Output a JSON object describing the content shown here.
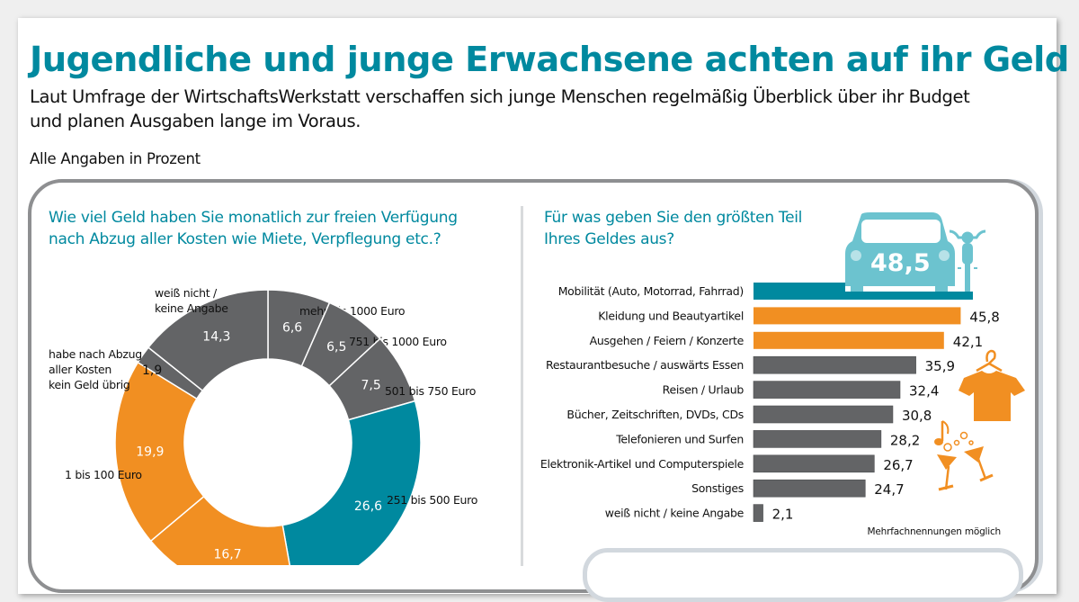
{
  "header": {
    "title": "Jugendliche und junge Erwachsene achten auf ihr Geld",
    "subtitle_line1": "Laut Umfrage der WirtschaftsWerkstatt verschaffen sich junge Menschen regelmäßig Überblick über ihr Budget",
    "subtitle_line2": "und planen Ausgaben lange im Voraus.",
    "note": "Alle Angaben in Prozent"
  },
  "colors": {
    "teal": "#00899f",
    "orange": "#f18f22",
    "gray": "#636466",
    "light_teal": "#6cc3cf"
  },
  "chart_data": [
    {
      "type": "pie",
      "variant": "donut",
      "title_line1": "Wie viel Geld haben Sie monatlich zur freien Verfügung",
      "title_line2": "nach Abzug aller Kosten wie Miete, Verpflegung etc.?",
      "slices": [
        {
          "label": "mehr als 1000 Euro",
          "label_lines": [
            "mehr als 1000 Euro"
          ],
          "value": 6.6,
          "display": "6,6",
          "color": "#636466"
        },
        {
          "label": "751 bis 1000 Euro",
          "label_lines": [
            "751 bis 1000 Euro"
          ],
          "value": 6.5,
          "display": "6,5",
          "color": "#636466"
        },
        {
          "label": "501 bis 750 Euro",
          "label_lines": [
            "501 bis 750 Euro"
          ],
          "value": 7.5,
          "display": "7,5",
          "color": "#636466"
        },
        {
          "label": "251 bis 500 Euro",
          "label_lines": [
            "251 bis 500 Euro"
          ],
          "value": 26.6,
          "display": "26,6",
          "color": "#00899f"
        },
        {
          "label": "",
          "label_lines": [],
          "value": 16.7,
          "display": "16,7",
          "color": "#f18f22"
        },
        {
          "label": "1 bis 100 Euro",
          "label_lines": [
            "1 bis 100 Euro"
          ],
          "value": 19.9,
          "display": "19,9",
          "color": "#f18f22"
        },
        {
          "label": "habe nach Abzug aller Kosten kein Geld übrig",
          "label_lines": [
            "habe nach Abzug",
            "aller Kosten",
            "kein Geld übrig"
          ],
          "value": 1.9,
          "display": "1,9",
          "color": "#636466"
        },
        {
          "label": "weiß nicht / keine Angabe",
          "label_lines": [
            "weiß nicht /",
            "keine Angabe"
          ],
          "value": 14.3,
          "display": "14,3",
          "color": "#636466"
        }
      ]
    },
    {
      "type": "bar",
      "orientation": "horizontal",
      "title_line1": "Für was geben Sie den größten Teil",
      "title_line2": "Ihres Geldes aus?",
      "categories": [
        "Mobilität (Auto, Motorrad, Fahrrad)",
        "Kleidung und Beautyartikel",
        "Ausgehen / Feiern / Konzerte",
        "Restaurantbesuche / auswärts Essen",
        "Reisen / Urlaub",
        "Bücher, Zeitschriften, DVDs, CDs",
        "Telefonieren und Surfen",
        "Elektronik-Artikel und Computerspiele",
        "Sonstiges",
        "weiß nicht / keine Angabe"
      ],
      "values": [
        48.5,
        45.8,
        42.1,
        35.9,
        32.4,
        30.8,
        28.2,
        26.7,
        24.7,
        2.1
      ],
      "display_values": [
        "48,5",
        "45,8",
        "42,1",
        "35,9",
        "32,4",
        "30,8",
        "28,2",
        "26,7",
        "24,7",
        "2,1"
      ],
      "bar_colors": [
        "#00899f",
        "#f18f22",
        "#f18f22",
        "#636466",
        "#636466",
        "#636466",
        "#636466",
        "#636466",
        "#636466",
        "#636466"
      ],
      "footnote": "Mehrfachnennungen möglich",
      "xlim": [
        0,
        50
      ],
      "grid": false
    }
  ]
}
